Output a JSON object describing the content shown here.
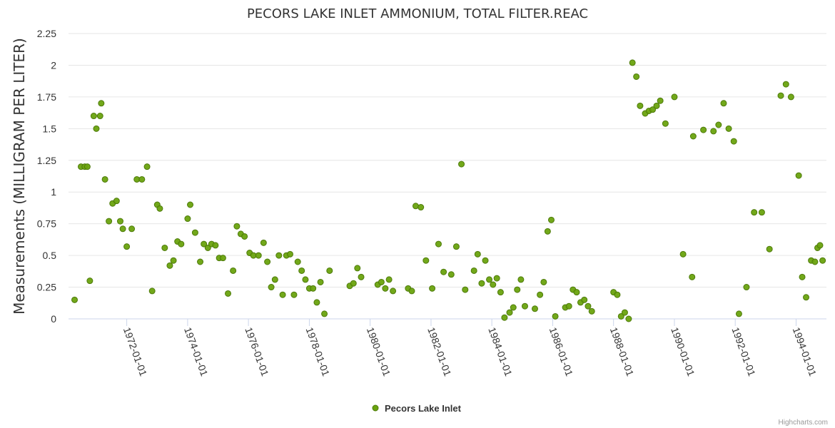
{
  "chart_data": {
    "type": "scatter",
    "title": "PECORS LAKE INLET AMMONIUM, TOTAL FILTER.REAC",
    "ylabel": "Measurements (MILLIGRAM PER LITER)",
    "xlabel": "",
    "ylim": [
      0,
      2.25
    ],
    "yticks": [
      "0",
      "0.25",
      "0.5",
      "0.75",
      "1",
      "1.25",
      "1.5",
      "1.75",
      "2",
      "2.25"
    ],
    "xlim": [
      "1970-02-01",
      "1994-12-31"
    ],
    "xticks": [
      "1972-01-01",
      "1974-01-01",
      "1976-01-01",
      "1978-01-01",
      "1980-01-01",
      "1982-01-01",
      "1984-01-01",
      "1986-01-01",
      "1988-01-01",
      "1990-01-01",
      "1992-01-01",
      "1994-01-01"
    ],
    "grid": true,
    "legend_position": "bottom-center",
    "credits": "Highcharts.com",
    "series": [
      {
        "name": "Pecors Lake Inlet",
        "color": "#6aa30e",
        "points": [
          [
            "1970-04-15",
            0.15
          ],
          [
            "1970-07-01",
            1.2
          ],
          [
            "1970-08-15",
            1.2
          ],
          [
            "1970-09-15",
            1.2
          ],
          [
            "1970-10-15",
            0.3
          ],
          [
            "1970-12-01",
            1.6
          ],
          [
            "1971-01-01",
            1.5
          ],
          [
            "1971-02-15",
            1.6
          ],
          [
            "1971-03-01",
            1.7
          ],
          [
            "1971-04-15",
            1.1
          ],
          [
            "1971-06-01",
            0.77
          ],
          [
            "1971-07-15",
            0.91
          ],
          [
            "1971-09-01",
            0.93
          ],
          [
            "1971-10-15",
            0.77
          ],
          [
            "1971-11-15",
            0.71
          ],
          [
            "1972-01-01",
            0.57
          ],
          [
            "1972-03-01",
            0.71
          ],
          [
            "1972-05-01",
            1.1
          ],
          [
            "1972-07-01",
            1.1
          ],
          [
            "1972-09-01",
            1.2
          ],
          [
            "1972-11-01",
            0.22
          ],
          [
            "1973-01-01",
            0.9
          ],
          [
            "1973-02-01",
            0.87
          ],
          [
            "1973-04-01",
            0.56
          ],
          [
            "1973-06-01",
            0.42
          ],
          [
            "1973-07-15",
            0.46
          ],
          [
            "1973-09-01",
            0.61
          ],
          [
            "1973-10-15",
            0.59
          ],
          [
            "1974-01-01",
            0.79
          ],
          [
            "1974-02-01",
            0.9
          ],
          [
            "1974-04-01",
            0.68
          ],
          [
            "1974-06-01",
            0.45
          ],
          [
            "1974-07-15",
            0.59
          ],
          [
            "1974-09-01",
            0.56
          ],
          [
            "1974-10-15",
            0.59
          ],
          [
            "1974-12-01",
            0.58
          ],
          [
            "1975-01-15",
            0.48
          ],
          [
            "1975-03-01",
            0.48
          ],
          [
            "1975-05-01",
            0.2
          ],
          [
            "1975-07-01",
            0.38
          ],
          [
            "1975-08-15",
            0.73
          ],
          [
            "1975-10-01",
            0.67
          ],
          [
            "1975-11-15",
            0.65
          ],
          [
            "1976-01-15",
            0.52
          ],
          [
            "1976-03-01",
            0.5
          ],
          [
            "1976-05-01",
            0.5
          ],
          [
            "1976-07-01",
            0.6
          ],
          [
            "1976-08-15",
            0.45
          ],
          [
            "1976-10-01",
            0.25
          ],
          [
            "1976-11-15",
            0.31
          ],
          [
            "1977-01-01",
            0.5
          ],
          [
            "1977-02-15",
            0.19
          ],
          [
            "1977-04-01",
            0.5
          ],
          [
            "1977-05-15",
            0.51
          ],
          [
            "1977-07-01",
            0.19
          ],
          [
            "1977-08-15",
            0.45
          ],
          [
            "1977-10-01",
            0.38
          ],
          [
            "1977-11-15",
            0.31
          ],
          [
            "1978-01-01",
            0.24
          ],
          [
            "1978-02-15",
            0.24
          ],
          [
            "1978-04-01",
            0.13
          ],
          [
            "1978-05-15",
            0.29
          ],
          [
            "1978-07-01",
            0.04
          ],
          [
            "1978-09-01",
            0.38
          ],
          [
            "1979-05-01",
            0.26
          ],
          [
            "1979-06-15",
            0.28
          ],
          [
            "1979-08-01",
            0.4
          ],
          [
            "1979-09-15",
            0.33
          ],
          [
            "1980-04-01",
            0.27
          ],
          [
            "1980-05-15",
            0.29
          ],
          [
            "1980-07-01",
            0.24
          ],
          [
            "1980-08-15",
            0.31
          ],
          [
            "1980-10-01",
            0.22
          ],
          [
            "1981-04-01",
            0.24
          ],
          [
            "1981-05-15",
            0.22
          ],
          [
            "1981-07-01",
            0.89
          ],
          [
            "1981-09-01",
            0.88
          ],
          [
            "1981-11-01",
            0.46
          ],
          [
            "1982-01-15",
            0.24
          ],
          [
            "1982-04-01",
            0.59
          ],
          [
            "1982-06-01",
            0.37
          ],
          [
            "1982-09-01",
            0.35
          ],
          [
            "1982-11-01",
            0.57
          ],
          [
            "1983-01-01",
            1.22
          ],
          [
            "1983-02-15",
            0.23
          ],
          [
            "1983-06-01",
            0.38
          ],
          [
            "1983-07-15",
            0.51
          ],
          [
            "1983-09-01",
            0.28
          ],
          [
            "1983-10-15",
            0.46
          ],
          [
            "1983-12-01",
            0.31
          ],
          [
            "1984-01-15",
            0.27
          ],
          [
            "1984-03-01",
            0.32
          ],
          [
            "1984-04-15",
            0.21
          ],
          [
            "1984-06-01",
            0.01
          ],
          [
            "1984-08-01",
            0.05
          ],
          [
            "1984-09-15",
            0.09
          ],
          [
            "1984-11-01",
            0.23
          ],
          [
            "1984-12-15",
            0.31
          ],
          [
            "1985-02-01",
            0.1
          ],
          [
            "1985-06-01",
            0.08
          ],
          [
            "1985-08-01",
            0.19
          ],
          [
            "1985-09-15",
            0.29
          ],
          [
            "1985-11-01",
            0.69
          ],
          [
            "1985-12-15",
            0.78
          ],
          [
            "1986-02-01",
            0.02
          ],
          [
            "1986-06-01",
            0.09
          ],
          [
            "1986-07-15",
            0.1
          ],
          [
            "1986-09-01",
            0.23
          ],
          [
            "1986-10-15",
            0.21
          ],
          [
            "1986-12-01",
            0.13
          ],
          [
            "1987-01-15",
            0.15
          ],
          [
            "1987-03-01",
            0.1
          ],
          [
            "1987-04-15",
            0.06
          ],
          [
            "1988-01-01",
            0.21
          ],
          [
            "1988-02-15",
            0.19
          ],
          [
            "1988-04-01",
            0.02
          ],
          [
            "1988-05-15",
            0.05
          ],
          [
            "1988-07-01",
            0.0
          ],
          [
            "1988-08-15",
            2.02
          ],
          [
            "1988-10-01",
            1.91
          ],
          [
            "1988-11-15",
            1.68
          ],
          [
            "1989-01-15",
            1.62
          ],
          [
            "1989-03-01",
            1.64
          ],
          [
            "1989-04-15",
            1.65
          ],
          [
            "1989-06-01",
            1.68
          ],
          [
            "1989-07-15",
            1.72
          ],
          [
            "1989-09-15",
            1.54
          ],
          [
            "1990-01-01",
            1.75
          ],
          [
            "1990-04-15",
            0.51
          ],
          [
            "1990-08-01",
            0.33
          ],
          [
            "1990-08-15",
            1.44
          ],
          [
            "1990-12-15",
            1.49
          ],
          [
            "1991-04-15",
            1.48
          ],
          [
            "1991-06-15",
            1.53
          ],
          [
            "1991-08-15",
            1.7
          ],
          [
            "1991-10-15",
            1.5
          ],
          [
            "1991-12-15",
            1.4
          ],
          [
            "1992-02-15",
            0.04
          ],
          [
            "1992-05-15",
            0.25
          ],
          [
            "1992-08-15",
            0.84
          ],
          [
            "1992-11-15",
            0.84
          ],
          [
            "1993-02-15",
            0.55
          ],
          [
            "1993-07-01",
            1.76
          ],
          [
            "1993-09-01",
            1.85
          ],
          [
            "1993-11-01",
            1.75
          ],
          [
            "1994-02-01",
            1.13
          ],
          [
            "1994-03-15",
            0.33
          ],
          [
            "1994-05-01",
            0.17
          ],
          [
            "1994-07-01",
            0.46
          ],
          [
            "1994-08-15",
            0.45
          ],
          [
            "1994-09-15",
            0.56
          ],
          [
            "1994-10-15",
            0.58
          ],
          [
            "1994-11-15",
            0.46
          ]
        ]
      }
    ]
  }
}
